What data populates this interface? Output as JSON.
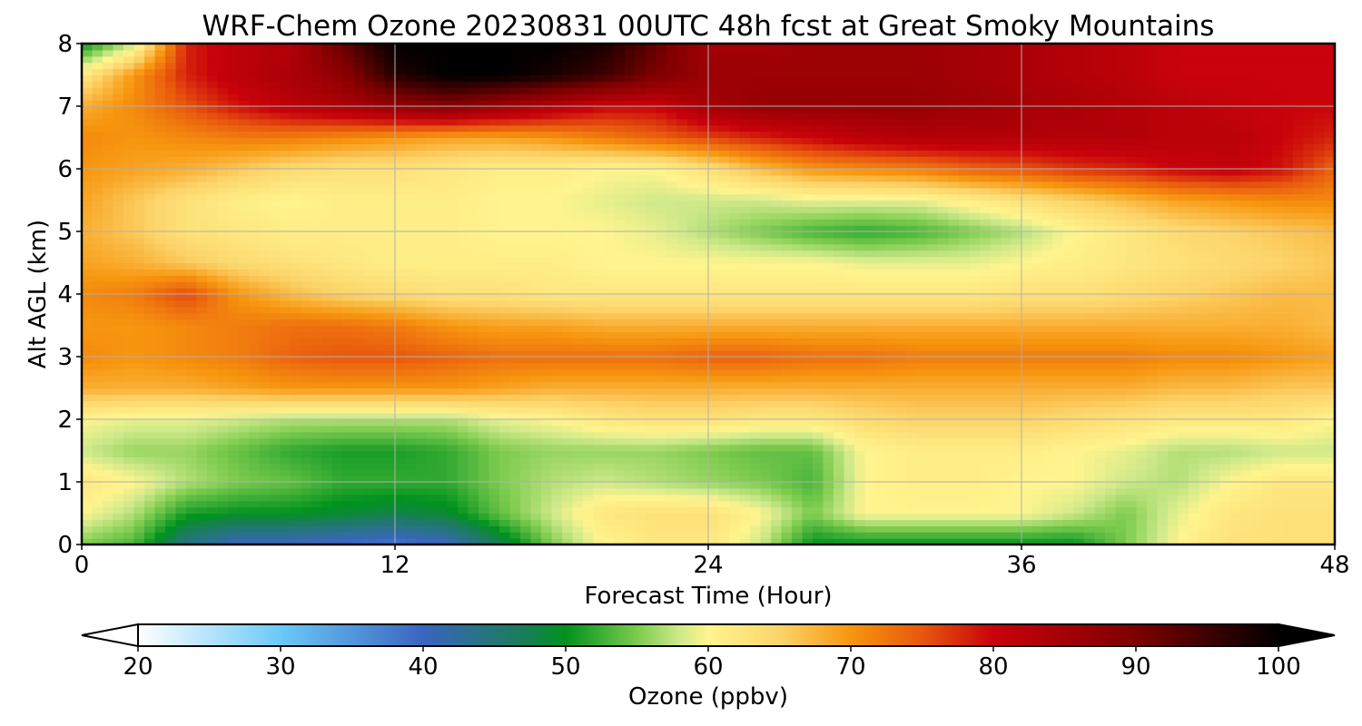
{
  "chart_data": {
    "type": "heatmap",
    "title": "WRF-Chem Ozone  20230831 00UTC 48h fcst at Great Smoky Mountains",
    "xlabel": "Forecast Time (Hour)",
    "ylabel": "Alt AGL (km)",
    "xlim": [
      0,
      48
    ],
    "ylim": [
      0,
      8
    ],
    "x_ticks": [
      0,
      12,
      24,
      36,
      48
    ],
    "y_ticks": [
      0,
      1,
      2,
      3,
      4,
      5,
      6,
      7,
      8
    ],
    "grid": true,
    "x": [
      0,
      2,
      4,
      6,
      8,
      10,
      12,
      14,
      16,
      18,
      20,
      22,
      24,
      26,
      28,
      30,
      32,
      34,
      36,
      38,
      40,
      42,
      44,
      46,
      48
    ],
    "y": [
      0,
      0.5,
      1,
      1.5,
      2,
      2.5,
      3,
      3.5,
      4,
      4.5,
      5,
      5.5,
      6,
      6.5,
      7,
      7.5,
      8
    ],
    "z": [
      [
        55,
        53,
        44,
        40,
        40,
        39,
        38,
        40,
        47,
        55,
        60,
        62,
        62,
        58,
        50,
        50,
        50,
        50,
        50,
        50,
        55,
        60,
        63,
        63,
        63
      ],
      [
        60,
        57,
        51,
        50,
        50,
        49,
        48,
        49,
        54,
        58,
        62,
        63,
        63,
        60,
        55,
        60,
        60,
        60,
        60,
        58,
        55,
        59,
        62,
        63,
        63
      ],
      [
        62,
        60,
        57,
        55,
        54,
        52,
        52,
        52,
        55,
        57,
        58,
        57,
        56,
        55,
        53,
        60,
        61,
        61,
        60,
        60,
        58,
        57,
        60,
        62,
        62
      ],
      [
        58,
        56,
        56,
        54,
        52,
        51,
        51,
        52,
        55,
        56,
        56,
        56,
        55,
        54,
        54,
        60,
        61,
        61,
        61,
        60,
        59,
        57,
        57,
        58,
        58
      ],
      [
        60,
        59,
        59,
        58,
        57,
        57,
        57,
        57,
        59,
        60,
        62,
        63,
        63,
        62,
        62,
        64,
        65,
        65,
        65,
        64,
        63,
        62,
        62,
        62,
        60
      ],
      [
        68,
        68,
        68,
        69,
        70,
        70,
        70,
        70,
        69,
        68,
        68,
        68,
        68,
        68,
        68,
        68,
        68,
        68,
        68,
        68,
        68,
        67,
        67,
        66,
        66
      ],
      [
        71,
        70,
        71,
        72,
        74,
        75,
        75,
        74,
        73,
        73,
        73,
        73,
        74,
        74,
        73,
        73,
        72,
        72,
        72,
        72,
        72,
        71,
        71,
        70,
        69
      ],
      [
        70,
        70,
        71,
        72,
        73,
        73,
        72,
        70,
        69,
        69,
        68,
        68,
        68,
        68,
        68,
        68,
        68,
        68,
        68,
        68,
        68,
        68,
        68,
        68,
        67
      ],
      [
        71,
        72,
        76,
        70,
        67,
        65,
        64,
        63,
        63,
        62,
        62,
        62,
        62,
        62,
        62,
        62,
        62,
        62,
        63,
        63,
        64,
        65,
        66,
        67,
        67
      ],
      [
        69,
        68,
        66,
        64,
        63,
        62,
        61,
        61,
        61,
        61,
        60,
        60,
        60,
        60,
        60,
        59,
        59,
        59,
        60,
        61,
        62,
        63,
        64,
        65,
        66
      ],
      [
        68,
        66,
        63,
        62,
        61,
        61,
        61,
        61,
        60,
        60,
        60,
        59,
        57,
        55,
        53,
        52,
        53,
        55,
        57,
        60,
        62,
        64,
        65,
        66,
        67
      ],
      [
        69,
        66,
        63,
        61,
        60,
        61,
        61,
        61,
        60,
        60,
        59,
        58,
        58,
        58,
        59,
        59,
        59,
        61,
        63,
        65,
        67,
        69,
        70,
        71,
        71
      ],
      [
        70,
        69,
        68,
        66,
        64,
        63,
        63,
        62,
        61,
        61,
        60,
        60,
        63,
        67,
        70,
        71,
        72,
        74,
        75,
        77,
        78,
        80,
        81,
        79,
        74
      ],
      [
        71,
        70,
        71,
        72,
        72,
        71,
        70,
        69,
        69,
        70,
        72,
        74,
        76,
        78,
        80,
        82,
        83,
        83,
        83,
        83,
        83,
        82,
        82,
        80,
        78
      ],
      [
        68,
        71,
        75,
        79,
        82,
        84,
        87,
        89,
        86,
        83,
        80,
        80,
        85,
        87,
        87,
        87,
        87,
        86,
        85,
        84,
        83,
        82,
        81,
        80,
        80
      ],
      [
        62,
        70,
        78,
        82,
        84,
        88,
        97,
        100,
        100,
        98,
        95,
        90,
        86,
        86,
        86,
        86,
        86,
        85,
        84,
        83,
        82,
        80,
        80,
        80,
        80
      ],
      [
        50,
        58,
        78,
        82,
        83,
        92,
        100,
        100,
        100,
        100,
        98,
        92,
        85,
        85,
        86,
        86,
        86,
        85,
        84,
        83,
        82,
        80,
        80,
        80,
        80
      ]
    ],
    "colorbar": {
      "label": "Ozone  (ppbv)",
      "min": 20,
      "max": 100,
      "ticks": [
        20,
        30,
        40,
        50,
        60,
        70,
        80,
        90,
        100
      ],
      "extend": "both",
      "stops": [
        {
          "v": 20,
          "c": "#ffffff"
        },
        {
          "v": 30,
          "c": "#6cc8f7"
        },
        {
          "v": 40,
          "c": "#3a65c0"
        },
        {
          "v": 47,
          "c": "#1a7d5a"
        },
        {
          "v": 50,
          "c": "#00921e"
        },
        {
          "v": 55,
          "c": "#7ccb4e"
        },
        {
          "v": 58,
          "c": "#cfe98a"
        },
        {
          "v": 60,
          "c": "#fff48e"
        },
        {
          "v": 65,
          "c": "#fcd46a"
        },
        {
          "v": 70,
          "c": "#f7960f"
        },
        {
          "v": 75,
          "c": "#e8570e"
        },
        {
          "v": 80,
          "c": "#c9020b"
        },
        {
          "v": 90,
          "c": "#7e0000"
        },
        {
          "v": 100,
          "c": "#000000"
        }
      ]
    }
  }
}
